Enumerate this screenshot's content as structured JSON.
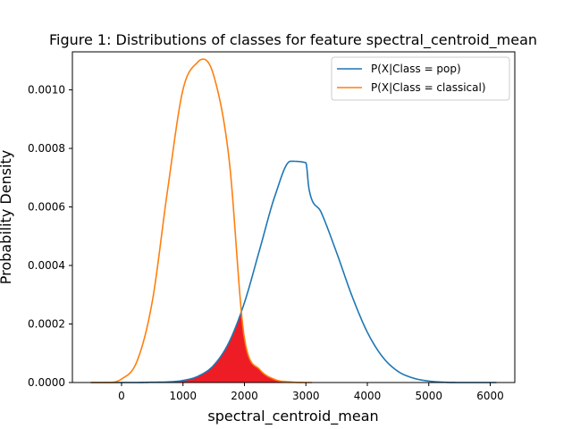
{
  "chart_data": {
    "type": "line",
    "title": "Figure 1: Distributions of classes for feature spectral_centroid_mean",
    "xlabel": "spectral_centroid_mean",
    "ylabel": "Probability Density",
    "xlim": [
      -800,
      6400
    ],
    "ylim": [
      0,
      0.00113
    ],
    "xticks": [
      {
        "v": 0,
        "label": "0"
      },
      {
        "v": 1000,
        "label": "1000"
      },
      {
        "v": 2000,
        "label": "2000"
      },
      {
        "v": 3000,
        "label": "3000"
      },
      {
        "v": 4000,
        "label": "4000"
      },
      {
        "v": 5000,
        "label": "5000"
      },
      {
        "v": 6000,
        "label": "6000"
      }
    ],
    "yticks": [
      {
        "v": 0,
        "label": "0.0000"
      },
      {
        "v": 0.0002,
        "label": "0.0002"
      },
      {
        "v": 0.0004,
        "label": "0.0004"
      },
      {
        "v": 0.0006,
        "label": "0.0006"
      },
      {
        "v": 0.0008,
        "label": "0.0008"
      },
      {
        "v": 0.001,
        "label": "0.0010"
      }
    ],
    "grid": false,
    "legend_position": "top-right",
    "series": [
      {
        "name": "P(X|Class = pop)",
        "color": "#1f77b4",
        "x": [
          -500,
          -250,
          0,
          250,
          500,
          750,
          1000,
          1250,
          1500,
          1750,
          2000,
          2250,
          2500,
          2750,
          3000,
          3050,
          3250,
          3500,
          3750,
          4000,
          4250,
          4500,
          4750,
          5000,
          5250,
          5500,
          5750,
          6000,
          6100
        ],
        "y": [
          0.0,
          0.0,
          0.0,
          0.0,
          1e-06,
          2e-06,
          7e-06,
          2.2e-05,
          5.9e-05,
          0.000138,
          0.000273,
          0.000456,
          0.00064,
          0.000756,
          0.000751,
          0.000662,
          0.000581,
          0.000444,
          0.000296,
          0.000172,
          8.7e-05,
          3.8e-05,
          1.5e-05,
          5e-06,
          1e-06,
          0.0,
          0.0,
          0.0,
          0.0
        ]
      },
      {
        "name": "P(X|Class = classical)",
        "color": "#ff7f0e",
        "x": [
          -500,
          -250,
          0,
          250,
          500,
          750,
          1000,
          1250,
          1330,
          1500,
          1750,
          2000,
          2250,
          2500,
          2750,
          3000,
          3100
        ],
        "y": [
          0.0,
          0.0,
          1.2e-05,
          7.2e-05,
          0.000277,
          0.000659,
          0.001001,
          0.001097,
          0.001105,
          0.001049,
          0.000763,
          0.000151,
          4.4e-05,
          1e-05,
          2e-06,
          0.0,
          0.0
        ]
      }
    ],
    "overlap_region": {
      "color": "#ee1c25",
      "x_from": 0,
      "x_to": 3000
    }
  }
}
